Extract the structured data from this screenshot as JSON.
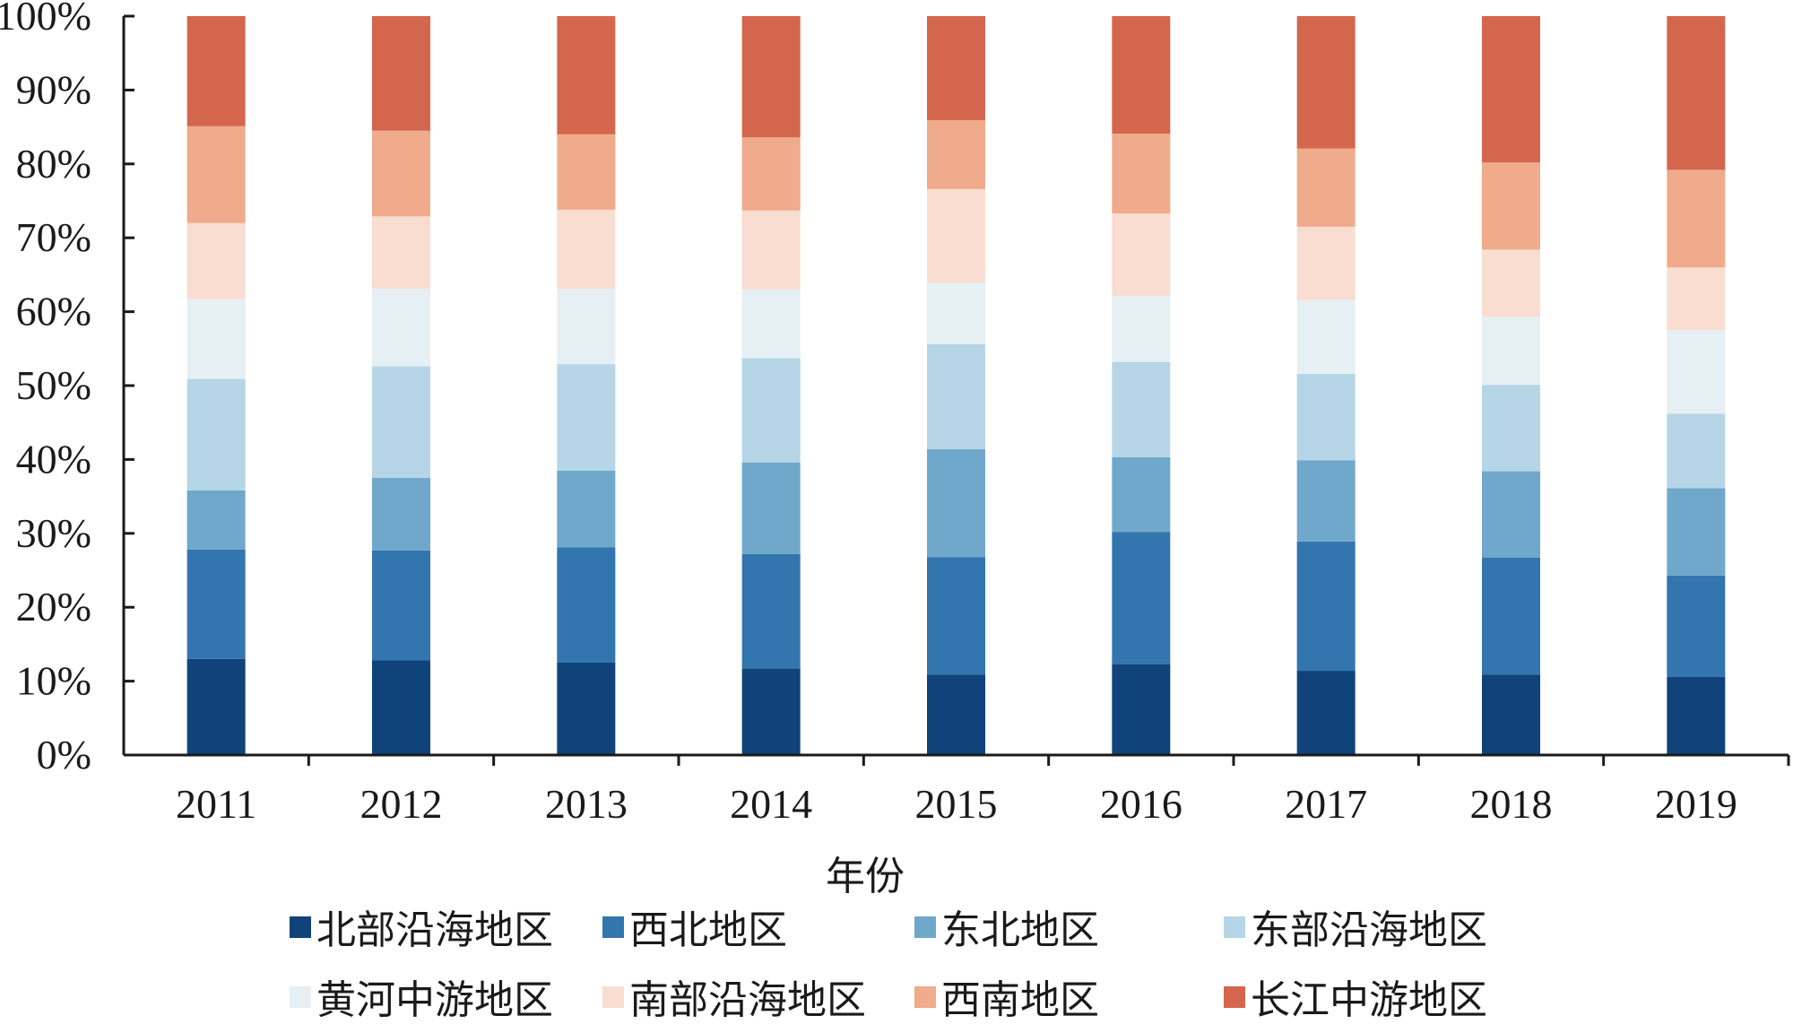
{
  "chart_data": {
    "type": "bar",
    "stacked": true,
    "percent": true,
    "title": "",
    "xlabel": "年份",
    "ylabel": "",
    "ylim": [
      0,
      100
    ],
    "yticks": [
      "0%",
      "10%",
      "20%",
      "30%",
      "40%",
      "50%",
      "60%",
      "70%",
      "80%",
      "90%",
      "100%"
    ],
    "categories": [
      "2011",
      "2012",
      "2013",
      "2014",
      "2015",
      "2016",
      "2017",
      "2018",
      "2019"
    ],
    "grid": false,
    "legend_position": "bottom",
    "series": [
      {
        "name": "北部沿海地区",
        "color": "#0f437a",
        "values": [
          13.0,
          12.8,
          12.5,
          11.7,
          10.9,
          12.3,
          11.4,
          10.9,
          10.6
        ]
      },
      {
        "name": "西北地区",
        "color": "#3375ae",
        "values": [
          14.8,
          14.9,
          15.6,
          15.5,
          15.9,
          17.9,
          17.5,
          15.8,
          13.7
        ]
      },
      {
        "name": "东北地区",
        "color": "#6fa8ca",
        "values": [
          8.0,
          9.8,
          10.4,
          12.4,
          14.6,
          10.1,
          11.0,
          11.7,
          11.8
        ]
      },
      {
        "name": "东部沿海地区",
        "color": "#b6d5e6",
        "values": [
          15.1,
          15.1,
          14.4,
          14.1,
          14.2,
          12.9,
          11.7,
          11.7,
          10.1
        ]
      },
      {
        "name": "黄河中游地区",
        "color": "#e6eff3",
        "values": [
          10.8,
          10.5,
          10.2,
          9.3,
          8.3,
          9.0,
          10.0,
          9.2,
          11.3
        ]
      },
      {
        "name": "南部沿海地区",
        "color": "#f8ddd0",
        "values": [
          10.3,
          9.8,
          10.7,
          10.7,
          12.7,
          11.1,
          9.9,
          9.1,
          8.5
        ]
      },
      {
        "name": "西南地区",
        "color": "#efab8b",
        "values": [
          13.1,
          11.6,
          10.2,
          9.9,
          9.3,
          10.8,
          10.6,
          11.8,
          13.2
        ]
      },
      {
        "name": "长江中游地区",
        "color": "#d4664e",
        "values": [
          14.9,
          15.5,
          16.0,
          16.4,
          14.1,
          15.9,
          17.9,
          19.8,
          20.8
        ]
      }
    ]
  }
}
